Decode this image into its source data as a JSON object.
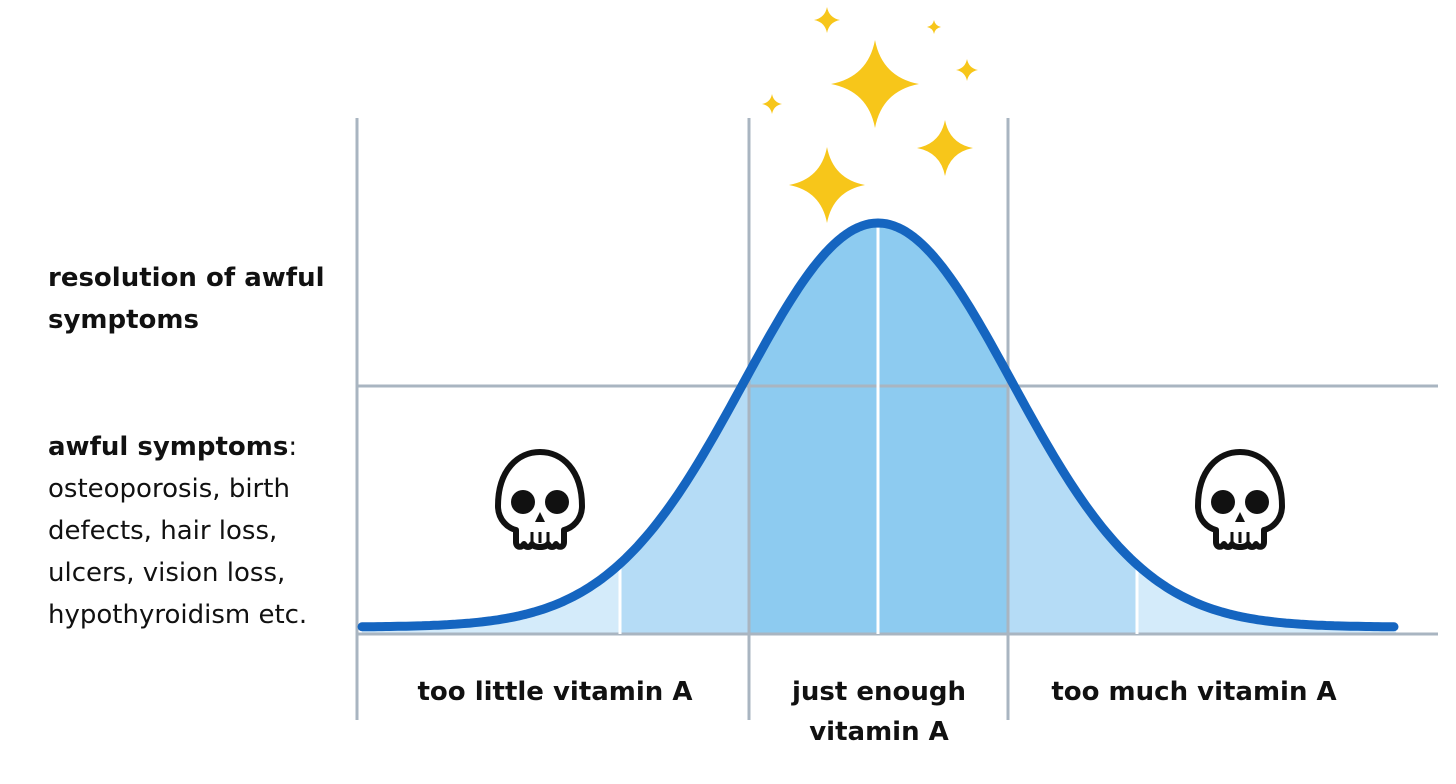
{
  "y_axis": {
    "top_label": "resolution of awful symptoms",
    "bottom_heading": "awful symptoms",
    "bottom_heading_suffix": ":",
    "bottom_text": "osteoporosis, birth defects, hair loss, ulcers, vision loss, hypothyroidism etc."
  },
  "zones": {
    "left": "too little vitamin A",
    "middle": "just enough vitamin A",
    "right": "too much vitamin A"
  },
  "icons": {
    "left_zone": "skull-icon",
    "right_zone": "skull-icon",
    "peak": "sparkles-icon"
  },
  "colors": {
    "curve": "#1565c0",
    "center_fill": "#8dcbf0",
    "mid_fill": "#b5dcf6",
    "outer_fill": "#d4ebfa",
    "grid": "#a9b5c1",
    "sparkle": "#f7c61a"
  }
}
